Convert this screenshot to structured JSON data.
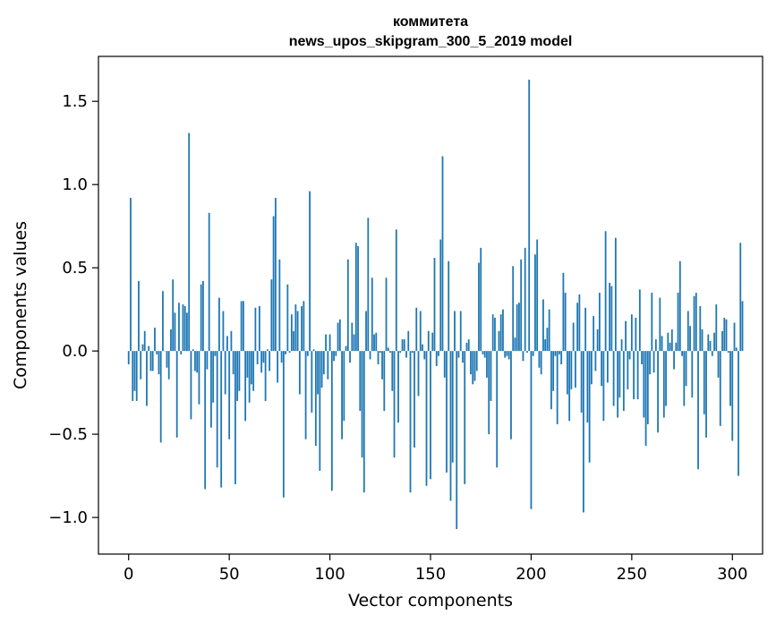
{
  "chart_data": {
    "type": "bar",
    "title_line1": "коммитета",
    "title_line2": "news_upos_skipgram_300_5_2019 model",
    "xlabel": "Vector components",
    "ylabel": "Components values",
    "xlim": [
      -15,
      315
    ],
    "ylim": [
      -1.22,
      1.77
    ],
    "xticks": [
      0,
      50,
      100,
      150,
      200,
      250,
      300
    ],
    "xtick_labels": [
      "0",
      "50",
      "100",
      "150",
      "200",
      "250",
      "300"
    ],
    "yticks": [
      -1.0,
      -0.5,
      0.0,
      0.5,
      1.0,
      1.5
    ],
    "ytick_labels": [
      "−1.0",
      "−0.5",
      "0.0",
      "0.5",
      "1.0",
      "1.5"
    ],
    "bar_color": "#1f77b4",
    "grid": false,
    "values": [
      -0.08,
      0.92,
      -0.3,
      -0.24,
      -0.3,
      0.42,
      -0.17,
      0.04,
      0.12,
      -0.33,
      0.03,
      -0.12,
      -0.12,
      0.14,
      -0.02,
      -0.14,
      -0.55,
      0.36,
      0.0,
      -0.1,
      -0.17,
      0.13,
      0.43,
      0.23,
      -0.52,
      0.29,
      -0.02,
      0.28,
      0.27,
      0.23,
      1.31,
      -0.41,
      0.01,
      -0.12,
      -0.13,
      -0.32,
      0.4,
      0.42,
      -0.83,
      -0.11,
      0.83,
      -0.46,
      -0.31,
      -0.03,
      -0.7,
      0.32,
      -0.82,
      0.24,
      -0.26,
      0.09,
      -0.53,
      0.12,
      -0.14,
      -0.8,
      -0.3,
      -0.24,
      0.3,
      0.3,
      -0.42,
      -0.16,
      -0.31,
      -0.2,
      -0.24,
      0.26,
      -0.08,
      0.27,
      -0.13,
      -0.07,
      -0.3,
      0.01,
      -0.12,
      0.43,
      0.81,
      0.92,
      -0.19,
      0.55,
      -0.07,
      -0.88,
      -0.02,
      0.4,
      -0.01,
      0.22,
      0.12,
      0.28,
      0.24,
      -0.26,
      0.27,
      0.3,
      -0.53,
      -0.03,
      0.96,
      -0.37,
      0.01,
      -0.57,
      -0.26,
      -0.72,
      -0.22,
      -0.14,
      0.1,
      -0.17,
      0.1,
      -0.84,
      -0.06,
      -0.03,
      0.17,
      0.19,
      -0.53,
      -0.42,
      0.03,
      0.55,
      -0.07,
      0.17,
      0.1,
      0.65,
      0.63,
      -0.36,
      -0.64,
      -0.85,
      0.24,
      0.8,
      -0.05,
      0.44,
      0.1,
      0.11,
      -0.08,
      -0.01,
      -0.17,
      -0.36,
      0.44,
      0.02,
      -0.01,
      -0.24,
      -0.64,
      0.73,
      -0.43,
      -0.01,
      0.07,
      0.07,
      -0.04,
      0.12,
      -0.85,
      -0.01,
      -0.58,
      0.26,
      -0.27,
      0.24,
      0.04,
      -0.05,
      -0.81,
      0.12,
      -0.77,
      0.11,
      0.56,
      -0.09,
      -0.03,
      0.67,
      1.17,
      -0.16,
      -0.73,
      0.54,
      -0.9,
      -0.67,
      0.24,
      -1.07,
      -0.04,
      0.24,
      -0.07,
      -0.8,
      0.05,
      0.07,
      -0.14,
      -0.2,
      -0.18,
      -0.12,
      0.53,
      0.62,
      -0.02,
      -0.04,
      -0.16,
      -0.5,
      -0.3,
      0.22,
      0.2,
      -0.7,
      0.12,
      0.22,
      0.25,
      -0.04,
      -0.03,
      -0.05,
      -0.53,
      0.51,
      0.08,
      0.28,
      0.29,
      0.55,
      -0.06,
      0.62,
      -0.01,
      1.63,
      -0.95,
      -0.03,
      0.58,
      0.67,
      -0.1,
      -0.14,
      0.31,
      0.07,
      0.14,
      0.25,
      -0.35,
      -0.24,
      -0.03,
      -0.44,
      -0.02,
      -0.08,
      0.47,
      0.35,
      -0.26,
      -0.42,
      -0.23,
      0.17,
      -0.22,
      0.29,
      0.34,
      -0.37,
      -0.97,
      0.26,
      -0.43,
      -0.67,
      -0.2,
      0.21,
      -0.12,
      0.13,
      0.35,
      -0.21,
      -0.42,
      0.72,
      -0.19,
      0.41,
      0.39,
      -0.33,
      0.68,
      -0.4,
      -0.28,
      0.07,
      -0.36,
      0.18,
      -0.23,
      -0.05,
      0.22,
      -0.29,
      0.2,
      -0.29,
      0.37,
      -0.08,
      -0.4,
      -0.57,
      -0.44,
      -0.14,
      0.35,
      -0.13,
      0.07,
      -0.49,
      0.32,
      0.09,
      -0.4,
      -0.33,
      0.11,
      0.05,
      0.13,
      -0.11,
      0.05,
      0.35,
      0.54,
      -0.03,
      -0.33,
      -0.21,
      0.24,
      0.15,
      -0.28,
      0.33,
      0.35,
      -0.71,
      0.27,
      0.13,
      -0.38,
      -0.52,
      0.1,
      0.06,
      -0.03,
      0.11,
      0.28,
      -0.16,
      -0.45,
      0.12,
      0.2,
      0.19,
      -0.01,
      -0.33,
      -0.54,
      0.17,
      0.02,
      -0.75,
      0.65,
      0.3
    ]
  }
}
